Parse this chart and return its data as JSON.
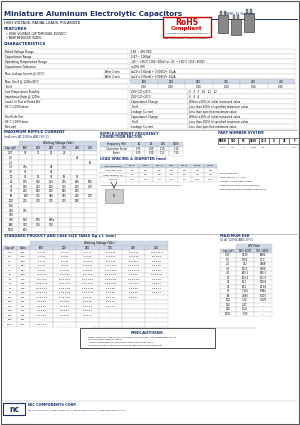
{
  "title": "Miniature Aluminum Electrolytic Capacitors",
  "series": "NRE-H Series",
  "subtitle1": "HIGH VOLTAGE, RADIAL LEADS, POLARIZED",
  "bg_color": "#ffffff",
  "header_blue": "#1a2f6e",
  "table_header_bg": "#d0d8e8",
  "rohs_red": "#cc0000",
  "char_table": [
    [
      "Rated Voltage Range",
      "160 ~ 450 VDC"
    ],
    [
      "Capacitance Range",
      "0.47 ~ 1000μF"
    ],
    [
      "Operating Temperature Range",
      "-40 ~ +85°C (160~200V) or -25 ~ +85°C (315~450V)"
    ],
    [
      "Capacitance Tolerance",
      "±20% (M)"
    ]
  ],
  "leakage_label": "Max. Leakage Current @ (20°C)",
  "leakage_rows": [
    [
      "After 1 min",
      "I≤CV x 0.01mA + 0.003CV+ 15μA"
    ],
    [
      "After 2 min",
      "I≤CV x 0.01mA + 0.003CV+ 20μA"
    ]
  ],
  "tan_voltages": [
    "160 V (Vdc)",
    "160",
    "200",
    "250",
    "315",
    "400",
    "450"
  ],
  "tan_label": "Max. Tan δ @ 120Hz/20°C",
  "tan_row_label": "Tan δ",
  "tan_vals": [
    "0.20",
    "0.20",
    "0.20",
    "0.20",
    "0.25",
    "0.25"
  ],
  "low_temp_rows": [
    [
      "Low Temperature Stability\nImpedance Ratio @ 120Hz",
      "Z-25°C/Z+20°C\nZ-40°C/Z+20°C",
      "3   3   3   10   12   12\n4   4   4    -    -    -"
    ]
  ],
  "load_life_label": "Load Life Test at Rated WV\n85°C 2,000 Hours",
  "shelf_life_label": "Shelf Life Test\n85°C 1,000 Hours\nNo Load",
  "life_sub_rows": [
    [
      "Capacitance Change",
      "Within ±20% of initial measured value"
    ],
    [
      "Tan δ",
      "Less than 200% of specified maximum value"
    ],
    [
      "Leakage Current",
      "Less than specified maximum value"
    ]
  ],
  "rip_title": "MAXIMUM RIPPLE CURRENT",
  "rip_sub": "(mA rms AT 120Hz AND 85°C)",
  "rip_headers": [
    "Cap (μF)",
    "160",
    "200",
    "250",
    "315",
    "400",
    "450"
  ],
  "rip_rows": [
    [
      "0.47",
      "35",
      "71",
      "12",
      "24",
      "n.a.",
      "n.a."
    ],
    [
      "1.0",
      "n.a.",
      "n.a.",
      "n.a.",
      "n.a.",
      "46",
      "n.a."
    ],
    [
      "2.2",
      "n.a.",
      "n.a.",
      "n.a.",
      "n.a.",
      "n.a.",
      "60"
    ],
    [
      "3.3",
      "47a",
      "n.a.",
      "48",
      "n.a.",
      "n.a.",
      "n.a."
    ],
    [
      "4.7",
      "47",
      "n.a.",
      "46",
      "n.a.",
      "n.a.",
      "n.a."
    ],
    [
      "10",
      "73",
      "92",
      "36",
      "56",
      "73",
      "n.a."
    ],
    [
      "22",
      "135",
      "140",
      "110",
      "175",
      "146",
      "180"
    ],
    [
      "33",
      "145",
      "210",
      "200",
      "305",
      "200",
      "230"
    ],
    [
      "47",
      "200",
      "250",
      "200",
      "250",
      "245",
      "n.a."
    ],
    [
      "68",
      "190",
      "305",
      "385",
      "445",
      "245",
      "270"
    ],
    [
      "100",
      "215",
      "300",
      "305",
      "305",
      "290",
      "n.a."
    ],
    [
      "150",
      "n.a.",
      "n.a.",
      "n.a.",
      "n.a.",
      "n.a.",
      "n.a."
    ],
    [
      "220",
      "275",
      "n.a.",
      "n.a.",
      "n.a.",
      "n.a.",
      "n.a."
    ],
    [
      "330",
      "n.a.",
      "n.a.",
      "n.a.",
      "n.a.",
      "n.a.",
      "n.a."
    ],
    [
      "470",
      "550",
      "575",
      "546e",
      "n.a.",
      "n.a.",
      "n.a."
    ],
    [
      "680",
      "710",
      "750",
      "750",
      "n.a.",
      "n.a.",
      "n.a."
    ],
    [
      "1000",
      "800",
      "n.a.",
      "n.a.",
      "n.a.",
      "n.a.",
      "n.a."
    ]
  ],
  "freq_title": "RIPPLE CURRENT FREQUENCY\nCORRECTION FACTOR",
  "freq_headers": [
    "Frequency (Hz)",
    "60",
    "1K",
    "10K",
    "100K"
  ],
  "freq_rows": [
    [
      "Correction Factor",
      "0.75",
      "1.00",
      "1.15",
      "1.15"
    ],
    [
      "Factor",
      "0.75",
      "1.00",
      "1.15",
      "1.15"
    ]
  ],
  "lead_title": "LEAD SPACING & DIAMETER (mm)",
  "lead_headers": [
    "Case Size (φxL)",
    "5x7.5",
    "6.3x11",
    "8x",
    "8x",
    "10x",
    "10x",
    "13x"
  ],
  "lead_rows": [
    [
      "Lead Dia. (d1)",
      "0.5",
      "0.5",
      "0.6",
      "0.6",
      "0.6",
      "0.6",
      "0.8"
    ],
    [
      "Lead Spacing (F)",
      "2.0",
      "2.5",
      "3.5",
      "5.0",
      "5.0",
      "7.5",
      "7.5"
    ],
    [
      "P/N #1",
      "0.9",
      "0.9",
      "0.9",
      "0.9",
      "0.9",
      "0.07",
      "0.07"
    ]
  ],
  "pn_title": "PART NUMBER SYSTEM",
  "pn_boxes": [
    "NREH",
    "100",
    "M",
    "160V",
    "12.5",
    "X",
    "25",
    "F"
  ],
  "std_title": "STANDARD PRODUCT AND CASE SIZE TABLE Dφ x L (mm)",
  "std_headers": [
    "Cap μF",
    "Code",
    "160",
    "200",
    "250",
    "315",
    "400",
    "450"
  ],
  "std_rows": [
    [
      "0.47",
      "R47",
      "5 x 11",
      "5 x 11",
      "5 x 11",
      "6.3 x 11",
      "6.3 x 11",
      "6.3 x 11.5"
    ],
    [
      "1.0",
      "1R0",
      "5 x 11",
      "5 x 11",
      "5 x 11",
      "6.3 x 11",
      "6.3 x 11",
      "8 x 12.5"
    ],
    [
      "2.2",
      "2R2",
      "5 x 11",
      "5 x 11",
      "6.3 x 11",
      "6.3 x 11",
      "8 x 11.5",
      "10 x 16"
    ],
    [
      "3.3",
      "3R3",
      "5 x 11",
      "5 x 11",
      "6.3 x 11",
      "6.3 x 12.5",
      "10 x 12.5",
      "10 x 20"
    ],
    [
      "4.7",
      "4R7",
      "5 x 11",
      "6.3 x 11",
      "6.3 x 11",
      "6.3 x 12.5",
      "10 x 12.5",
      "10 x 20"
    ],
    [
      "10",
      "100",
      "6.3 x 11",
      "6.3 x 11",
      "8 x 11.5",
      "10 x 12.5",
      "10 x 16",
      "12.5 x 25"
    ],
    [
      "22",
      "220",
      "8 x 11.5",
      "10 x 12.5",
      "10 x 12.5",
      "12.5 x 25",
      "12.5 x 25",
      "16 x 25"
    ],
    [
      "33",
      "330",
      "10 x 12.5",
      "10 x 12.5",
      "12.5 x 25",
      "12.5 x 25",
      "16 x 25",
      "16 x 31"
    ],
    [
      "47",
      "470",
      "10 x 12.5",
      "12.5 x 25",
      "12.5 x 25",
      "16 x 25",
      "16 x 25",
      "16 x 41"
    ],
    [
      "68",
      "680",
      "12.5 x 20",
      "12.5 x 20",
      "12.5 x 20",
      "16 x 25",
      "16 x 25",
      "18 x 41"
    ],
    [
      "100",
      "101",
      "12.5 x 25",
      "12.5 x 25",
      "16 x 25",
      "16 x 25",
      "16 x 41",
      "n.a."
    ],
    [
      "150",
      "151",
      "16 x 25",
      "16 x 25",
      "16 x 25",
      "16 x 41",
      "n.a.",
      "n.a."
    ],
    [
      "220",
      "221",
      "16 x 25",
      "16 x 31",
      "16 x 31",
      "18 x 41",
      "n.a.",
      "n.a."
    ],
    [
      "330",
      "331",
      "16 x 31",
      "18 x 41",
      "18 x 41",
      "n.a.",
      "n.a.",
      "n.a."
    ],
    [
      "470",
      "471",
      "16 x 45",
      "16 x 45",
      "18 x 41",
      "n.a.",
      "n.a.",
      "n.a."
    ],
    [
      "680",
      "681",
      "n.a.",
      "n.a.",
      "n.a.",
      "n.a.",
      "n.a.",
      "n.a."
    ],
    [
      "1000",
      "102",
      "18 x 41",
      "n.a.",
      "n.a.",
      "n.a.",
      "n.a.",
      "n.a."
    ]
  ],
  "esr_title": "MAXIMUM ESR",
  "esr_sub": "(Ω AT 120HZ AND 20°C)",
  "esr_headers": [
    "Cap (μF)",
    "WV (Vdc)\n160~250V",
    "WV (Vdc)\n315~450V"
  ],
  "esr_rows": [
    [
      "0.47",
      "3530",
      "6882"
    ],
    [
      "1.0",
      "1352",
      "41.5"
    ],
    [
      "2.2",
      "722",
      "1988"
    ],
    [
      "3.3",
      "1011",
      "1380"
    ],
    [
      "4.7",
      "643.3",
      "845.3"
    ],
    [
      "10",
      "163.4",
      "101.5"
    ],
    [
      "22",
      "55.1",
      "108.8"
    ],
    [
      "33",
      "50.1",
      "12.85"
    ],
    [
      "47",
      "7.105",
      "8.962"
    ],
    [
      "68",
      "4.665",
      "8.110"
    ],
    [
      "100",
      "3.32",
      "4.170"
    ],
    [
      "150",
      "2.47",
      "-"
    ],
    [
      "220",
      "1.54",
      "-"
    ],
    [
      "1000",
      "1.03",
      "-"
    ]
  ],
  "precautions_title": "PRECAUTIONS",
  "footer_text": "NIC COMPONENTS CORP.",
  "footer_web": "www.niccomp.com  |  www.lowESR.com  |  www.RFpassives.com  |  www.SMTmagnetics.com"
}
